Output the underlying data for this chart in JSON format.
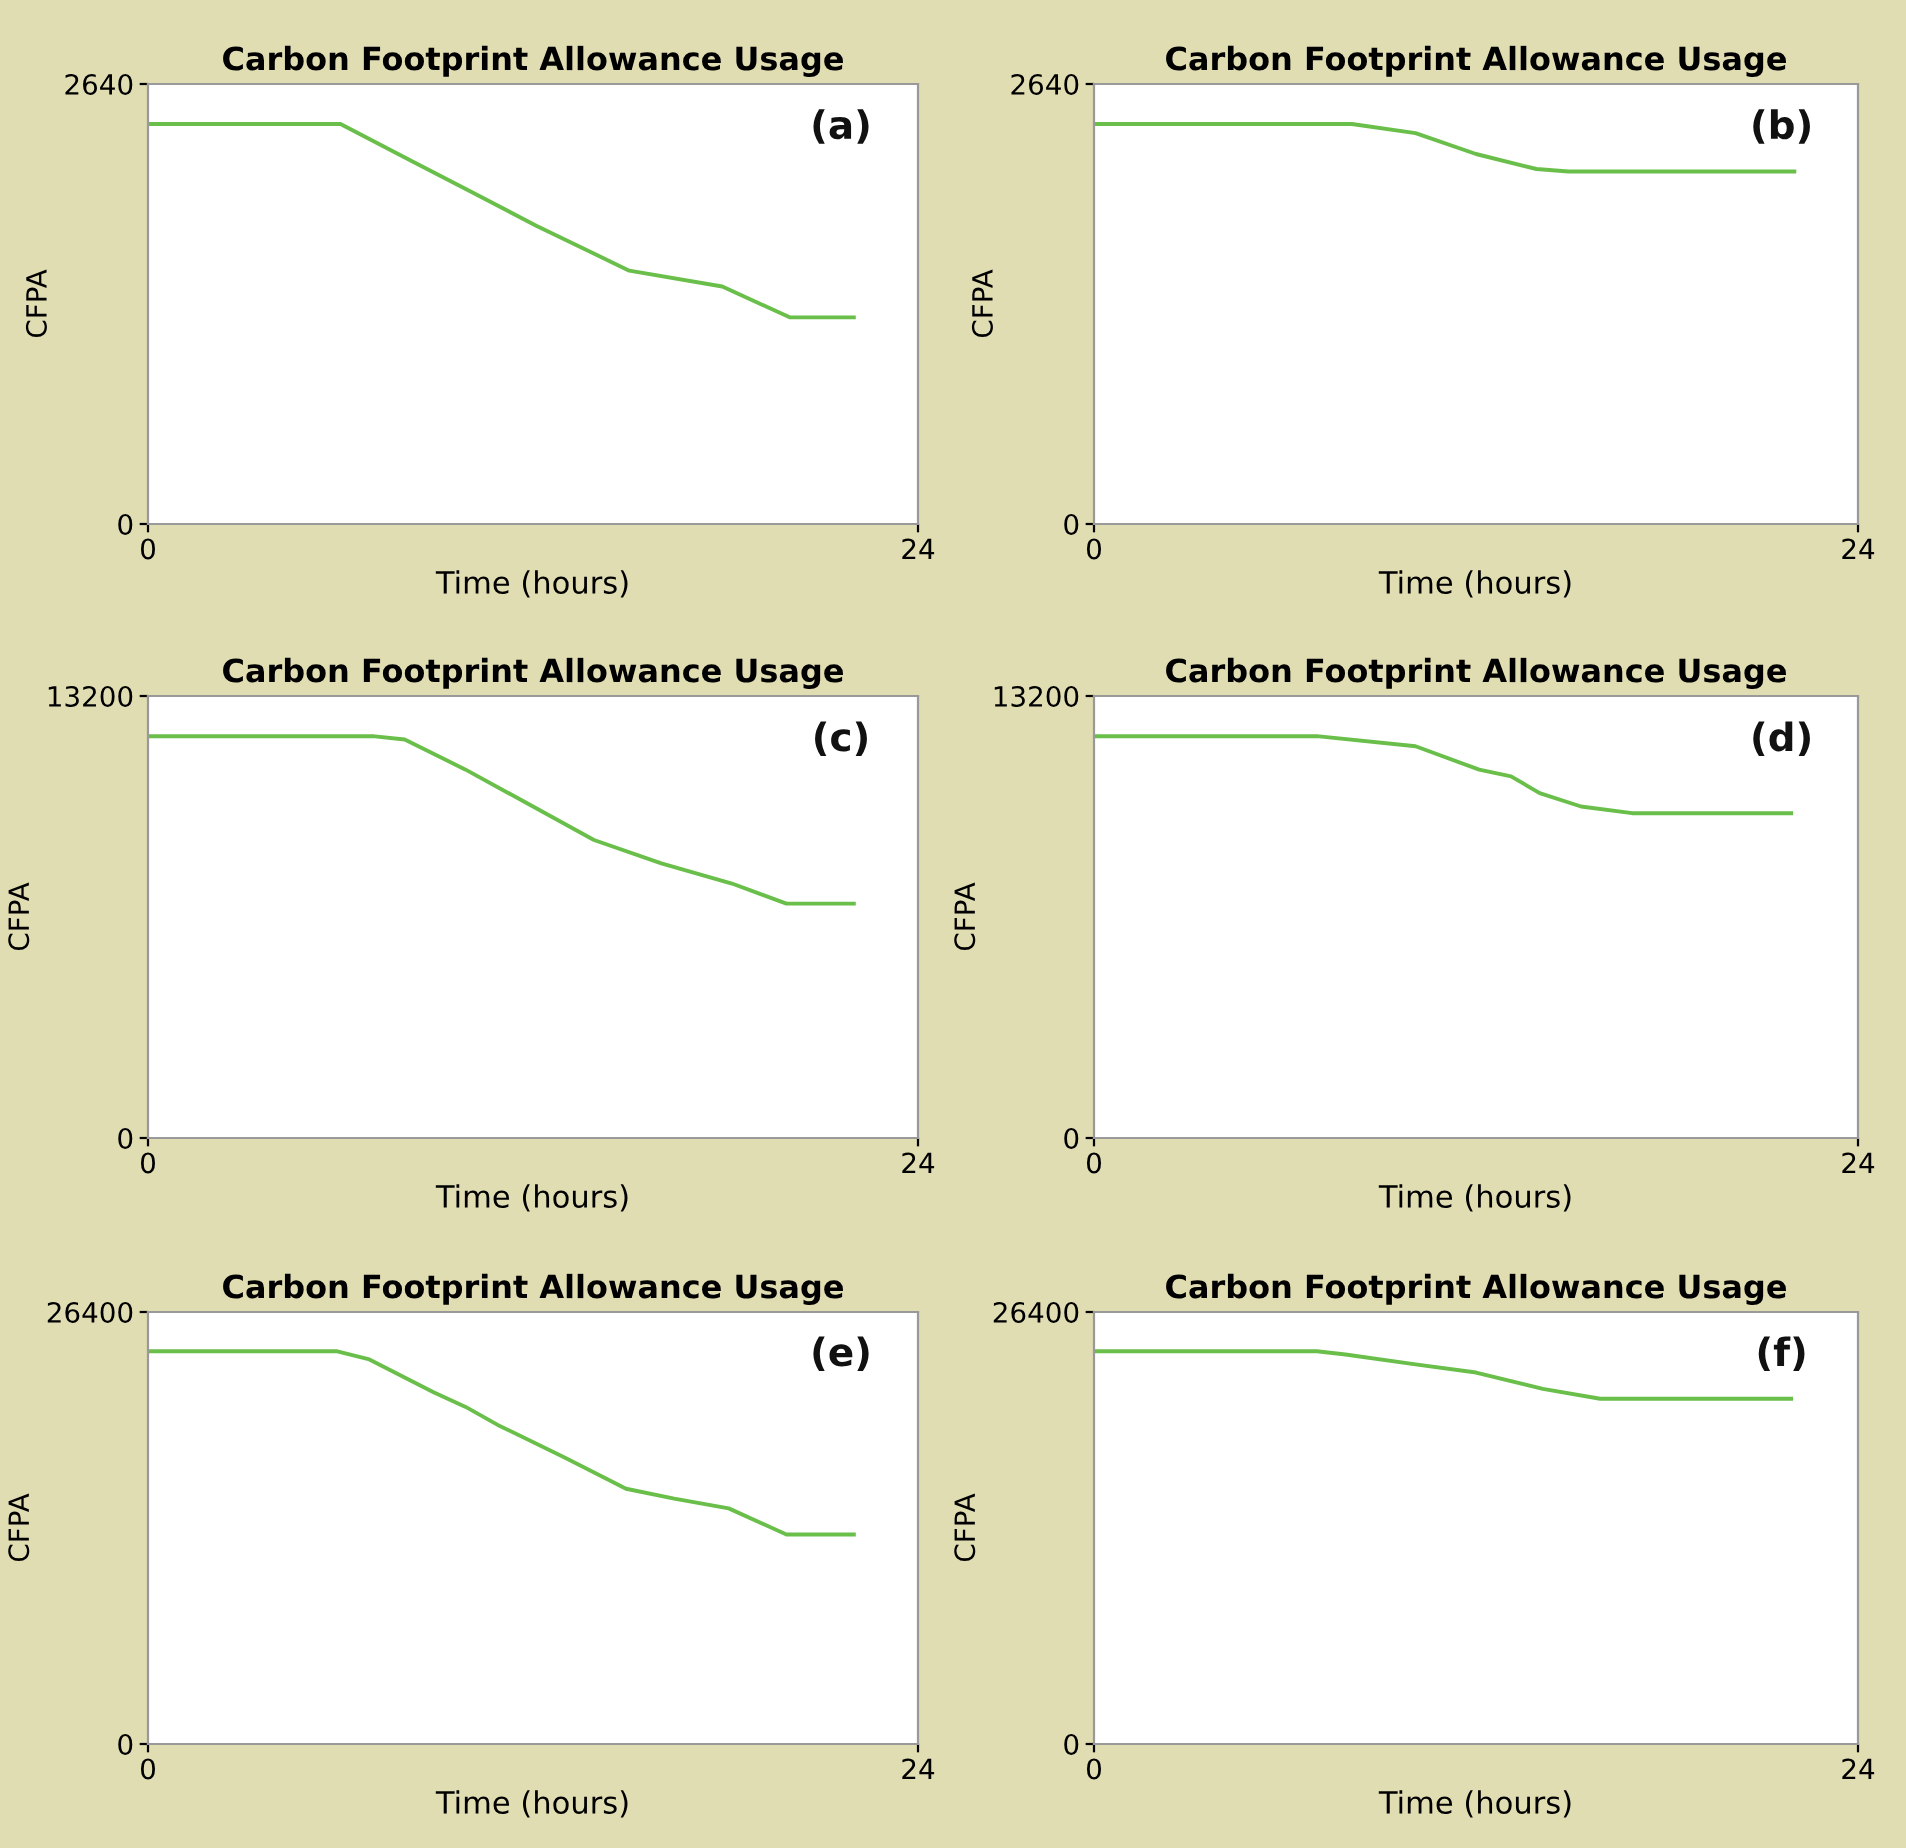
{
  "chart_data": [
    {
      "type": "line",
      "title": "Carbon Footprint Allowance Usage",
      "xlabel": "Time (hours)",
      "ylabel": "CFPA",
      "annotations": [
        "(a)"
      ],
      "xlim": [
        0,
        24
      ],
      "xticks": [
        0,
        24
      ],
      "ylim": [
        0,
        2640
      ],
      "yticks": [
        0,
        2640
      ],
      "series": [
        {
          "color": "#6abf4b",
          "x": [
            0,
            6.0,
            8.2,
            10.1,
            12.1,
            15.0,
            17.9,
            20.0,
            22.0
          ],
          "values": [
            2400,
            2400,
            2180,
            1990,
            1790,
            1520,
            1425,
            1240,
            1240
          ]
        }
      ]
    },
    {
      "type": "line",
      "title": "Carbon Footprint Allowance Usage",
      "xlabel": "Time (hours)",
      "ylabel": "CFPA",
      "annotations": [
        "(b)"
      ],
      "xlim": [
        0,
        24
      ],
      "xticks": [
        0,
        24
      ],
      "ylim": [
        0,
        2640
      ],
      "yticks": [
        0,
        2640
      ],
      "series": [
        {
          "color": "#6abf4b",
          "x": [
            0,
            8.1,
            10.1,
            12.0,
            13.9,
            14.9,
            22.0
          ],
          "values": [
            2400,
            2400,
            2345,
            2220,
            2130,
            2115,
            2115
          ]
        }
      ]
    },
    {
      "type": "line",
      "title": "Carbon Footprint Allowance Usage",
      "xlabel": "Time (hours)",
      "ylabel": "CFPA",
      "annotations": [
        "(c)"
      ],
      "xlim": [
        0,
        24
      ],
      "xticks": [
        0,
        24
      ],
      "ylim": [
        0,
        13200
      ],
      "yticks": [
        0,
        13200
      ],
      "series": [
        {
          "color": "#6abf4b",
          "x": [
            0,
            7.0,
            8.0,
            9.9,
            12.0,
            13.9,
            16.0,
            18.2,
            19.9,
            22.0
          ],
          "values": [
            12000,
            12000,
            11900,
            11000,
            9900,
            8900,
            8200,
            7600,
            7000,
            7000
          ]
        }
      ]
    },
    {
      "type": "line",
      "title": "Carbon Footprint Allowance Usage",
      "xlabel": "Time (hours)",
      "ylabel": "CFPA",
      "annotations": [
        "(d)"
      ],
      "xlim": [
        0,
        24
      ],
      "xticks": [
        0,
        24
      ],
      "ylim": [
        0,
        13200
      ],
      "yticks": [
        0,
        13200
      ],
      "series": [
        {
          "color": "#6abf4b",
          "x": [
            0,
            7.0,
            10.1,
            12.1,
            13.1,
            14.0,
            15.3,
            16.9,
            21.9
          ],
          "values": [
            12000,
            12000,
            11700,
            11000,
            10800,
            10300,
            9900,
            9700,
            9700
          ]
        }
      ]
    },
    {
      "type": "line",
      "title": "Carbon Footprint Allowance Usage",
      "xlabel": "Time (hours)",
      "ylabel": "CFPA",
      "annotations": [
        "(e)"
      ],
      "xlim": [
        0,
        24
      ],
      "xticks": [
        0,
        24
      ],
      "ylim": [
        0,
        26400
      ],
      "yticks": [
        0,
        26400
      ],
      "series": [
        {
          "color": "#6abf4b",
          "x": [
            0,
            5.9,
            6.9,
            8.9,
            9.9,
            10.9,
            13.0,
            14.9,
            16.4,
            18.1,
            19.9,
            22.0
          ],
          "values": [
            24000,
            24000,
            23500,
            21500,
            20600,
            19500,
            17500,
            15600,
            15000,
            14400,
            12800,
            12800
          ]
        }
      ]
    },
    {
      "type": "line",
      "title": "Carbon Footprint Allowance Usage",
      "xlabel": "Time (hours)",
      "ylabel": "CFPA",
      "annotations": [
        "(f)"
      ],
      "xlim": [
        0,
        24
      ],
      "xticks": [
        0,
        24
      ],
      "ylim": [
        0,
        26400
      ],
      "yticks": [
        0,
        26400
      ],
      "series": [
        {
          "color": "#6abf4b",
          "x": [
            0,
            7.0,
            7.9,
            10.1,
            12.0,
            14.1,
            15.9,
            21.9
          ],
          "values": [
            24000,
            24000,
            23800,
            23200,
            22700,
            21700,
            21100,
            21100
          ]
        }
      ]
    }
  ]
}
